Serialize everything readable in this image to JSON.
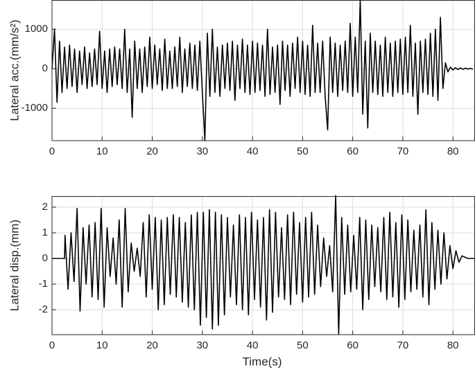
{
  "chart_data": [
    {
      "type": "line",
      "ylabel": "Lateral acc.(mm/s²)",
      "color": "#000000",
      "grid": true,
      "xlim": [
        0,
        84.4
      ],
      "xticks": [
        0,
        10,
        20,
        30,
        40,
        50,
        60,
        70,
        80
      ],
      "ylim": [
        -1820,
        1740
      ],
      "yticks": [
        -1000,
        0,
        1000
      ],
      "x": [
        0,
        0.5,
        1,
        1.5,
        2,
        2.5,
        3,
        3.5,
        4,
        4.5,
        5,
        5.5,
        6,
        6.5,
        7,
        7.5,
        8,
        8.5,
        9,
        9.5,
        10,
        10.5,
        11,
        11.5,
        12,
        12.5,
        13,
        13.5,
        14,
        14.5,
        15,
        15.5,
        16,
        16.5,
        17,
        17.5,
        18,
        18.5,
        19,
        19.5,
        20,
        20.5,
        21,
        21.5,
        22,
        22.5,
        23,
        23.5,
        24,
        24.5,
        25,
        25.5,
        26,
        26.5,
        27,
        27.5,
        28,
        28.5,
        29,
        29.5,
        30,
        30.5,
        31,
        31.5,
        32,
        32.5,
        33,
        33.5,
        34,
        34.5,
        35,
        35.5,
        36,
        36.5,
        37,
        37.5,
        38,
        38.5,
        39,
        39.5,
        40,
        40.5,
        41,
        41.5,
        42,
        42.5,
        43,
        43.5,
        44,
        44.5,
        45,
        45.5,
        46,
        46.5,
        47,
        47.5,
        48,
        48.5,
        49,
        49.5,
        50,
        50.5,
        51,
        51.5,
        52,
        52.5,
        53,
        53.5,
        54,
        54.5,
        55,
        55.5,
        56,
        56.5,
        57,
        57.5,
        58,
        58.5,
        59,
        59.5,
        60,
        60.5,
        61,
        61.5,
        62,
        62.5,
        63,
        63.5,
        64,
        64.5,
        65,
        65.5,
        66,
        66.5,
        67,
        67.5,
        68,
        68.5,
        69,
        69.5,
        70,
        70.5,
        71,
        71.5,
        72,
        72.5,
        73,
        73.5,
        74,
        74.5,
        75,
        75.5,
        76,
        76.5,
        77,
        77.5,
        78,
        78.5,
        79,
        79.5,
        80,
        80.5,
        81,
        81.5,
        82,
        82.5,
        83,
        83.5,
        84
      ],
      "values": [
        0,
        1000,
        -850,
        700,
        -600,
        550,
        -500,
        600,
        -450,
        500,
        -600,
        450,
        -400,
        550,
        -500,
        400,
        -450,
        500,
        -400,
        950,
        -500,
        450,
        -600,
        500,
        -450,
        550,
        -400,
        500,
        -500,
        1000,
        -600,
        500,
        -1230,
        700,
        -500,
        500,
        -600,
        550,
        -450,
        800,
        -500,
        600,
        -400,
        500,
        -550,
        750,
        -500,
        450,
        -500,
        550,
        -450,
        800,
        -600,
        500,
        -450,
        650,
        -500,
        600,
        -550,
        700,
        -600,
        -1820,
        900,
        -700,
        1000,
        -600,
        550,
        -700,
        600,
        -500,
        650,
        -550,
        700,
        -800,
        600,
        -500,
        750,
        -600,
        600,
        -650,
        700,
        -600,
        650,
        -550,
        600,
        -700,
        1000,
        -650,
        550,
        -600,
        600,
        -900,
        700,
        -550,
        600,
        -700,
        650,
        -500,
        800,
        -600,
        700,
        -650,
        600,
        -700,
        1100,
        -600,
        650,
        -600,
        700,
        -700,
        -1550,
        800,
        -600,
        650,
        -700,
        600,
        -550,
        700,
        -600,
        1150,
        -700,
        800,
        -600,
        1750,
        -1150,
        700,
        -1500,
        900,
        -600,
        700,
        -650,
        600,
        -700,
        800,
        -600,
        650,
        -700,
        700,
        -600,
        750,
        -650,
        800,
        -600,
        1100,
        -700,
        650,
        -1150,
        700,
        -600,
        750,
        -650,
        900,
        -700,
        1000,
        -800,
        1300,
        -500,
        150,
        -80,
        40,
        -30,
        25,
        -20,
        20,
        -15,
        15,
        -10,
        10,
        -10
      ]
    },
    {
      "type": "line",
      "ylabel": "Lateral disp.(mm)",
      "xlabel": "Time(s)",
      "color": "#000000",
      "grid": true,
      "xlim": [
        0,
        84.4
      ],
      "xticks": [
        0,
        10,
        20,
        30,
        40,
        50,
        60,
        70,
        80
      ],
      "ylim": [
        -2.97,
        2.43
      ],
      "yticks": [
        -2,
        -1,
        0,
        1,
        2
      ],
      "x": [
        0,
        2.5,
        2.6,
        3.2,
        3.8,
        4.4,
        5,
        5.6,
        6.2,
        6.8,
        7.4,
        8,
        8.6,
        9.2,
        9.8,
        10.4,
        11,
        11.6,
        12.2,
        12.8,
        13.4,
        14,
        14.6,
        15.2,
        15.8,
        16.4,
        17,
        17.6,
        18.2,
        18.8,
        19.4,
        20,
        20.6,
        21.2,
        21.8,
        22.4,
        23,
        23.6,
        24.2,
        24.8,
        25.4,
        26,
        26.6,
        27.2,
        27.8,
        28.4,
        29,
        29.6,
        30.2,
        30.8,
        31.4,
        32,
        32.6,
        33.2,
        33.8,
        34.4,
        35,
        35.6,
        36.2,
        36.8,
        37.4,
        38,
        38.6,
        39.2,
        39.8,
        40.4,
        41,
        41.6,
        42.2,
        42.8,
        43.4,
        44,
        44.6,
        45.2,
        45.8,
        46.4,
        47,
        47.6,
        48.2,
        48.8,
        49.4,
        50,
        50.6,
        51.2,
        51.8,
        52.4,
        53,
        53.6,
        54.2,
        54.8,
        55.4,
        56,
        56.6,
        57.2,
        57.8,
        58.4,
        59,
        59.6,
        60.2,
        60.8,
        61.4,
        62,
        62.6,
        63.2,
        63.8,
        64.4,
        65,
        65.6,
        66.2,
        66.8,
        67.4,
        68,
        68.6,
        69.2,
        69.8,
        70.4,
        71,
        71.6,
        72.2,
        72.8,
        73.4,
        74,
        74.6,
        75.2,
        75.8,
        76.4,
        77,
        77.6,
        78.2,
        78.8,
        79.4,
        80,
        80.6,
        81.2,
        81.8,
        83,
        84.4
      ],
      "values": [
        0,
        0,
        0.9,
        -1.2,
        1.0,
        -0.9,
        1.95,
        -2.05,
        1.2,
        -1.0,
        1.3,
        -1.5,
        1.4,
        -1.6,
        1.95,
        -1.9,
        1.2,
        -0.7,
        0.8,
        -1.0,
        1.5,
        -1.9,
        1.95,
        -1.3,
        0.6,
        -0.5,
        0.4,
        -0.7,
        1.4,
        -1.5,
        1.7,
        -1.2,
        1.6,
        -2.0,
        1.5,
        -1.8,
        1.6,
        -1.4,
        1.7,
        -1.5,
        1.6,
        -1.7,
        1.4,
        -1.9,
        1.7,
        -2.0,
        1.8,
        -2.6,
        1.8,
        -2.3,
        1.9,
        -2.75,
        1.8,
        -2.6,
        1.7,
        -2.2,
        1.6,
        -1.5,
        1.3,
        -1.8,
        1.7,
        -2.0,
        1.6,
        -2.2,
        1.8,
        -1.6,
        1.5,
        -1.9,
        1.6,
        -2.4,
        1.9,
        -2.1,
        1.8,
        -1.5,
        1.2,
        -1.6,
        1.7,
        -1.8,
        1.8,
        -1.4,
        1.4,
        -1.7,
        1.6,
        -1.5,
        1.8,
        -1.4,
        1.3,
        -1.1,
        0.8,
        -0.7,
        0.5,
        -1.3,
        2.45,
        -2.95,
        1.6,
        -1.4,
        1.3,
        -1.3,
        0.9,
        -1.2,
        1.6,
        -2.0,
        1.5,
        -1.6,
        1.3,
        -1.1,
        1.2,
        -1.3,
        1.6,
        -1.6,
        1.8,
        -1.5,
        1.4,
        -1.9,
        1.7,
        -1.6,
        1.5,
        -1.3,
        1.1,
        -1.2,
        1.3,
        -1.5,
        1.9,
        -1.8,
        1.4,
        -1.2,
        1.1,
        -1.0,
        1.0,
        -0.8,
        0.5,
        -0.4,
        0.3,
        -0.15,
        0.1,
        0,
        0
      ]
    }
  ]
}
